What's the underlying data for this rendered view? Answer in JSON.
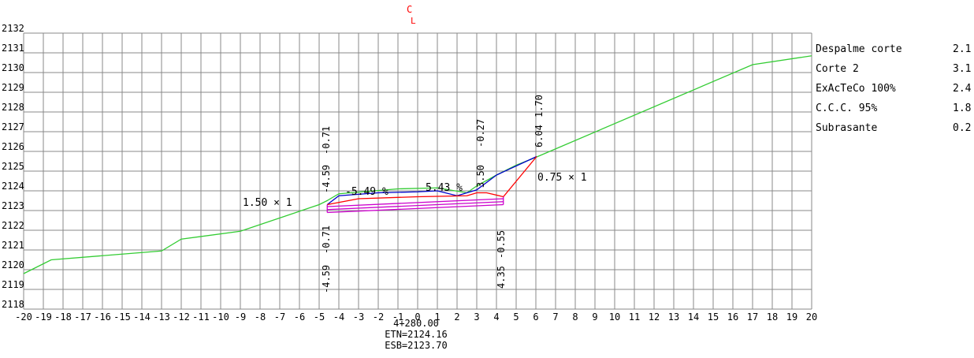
{
  "section": {
    "station": "4+280.00",
    "etn": "ETN=2124.16",
    "esb": "ESB=2123.70",
    "centerline_symbol": "C",
    "centerline_subscript": "L"
  },
  "axes": {
    "x_min": -20,
    "x_max": 20,
    "y_min": 2118,
    "y_max": 2132,
    "x_ticks": [
      "-20",
      "-19",
      "-18",
      "-17",
      "-16",
      "-15",
      "-14",
      "-13",
      "-12",
      "-11",
      "-10",
      "-9",
      "-8",
      "-7",
      "-6",
      "-5",
      "-4",
      "-3",
      "-2",
      "-1",
      "0",
      "1",
      "2",
      "3",
      "4",
      "5",
      "6",
      "7",
      "8",
      "9",
      "10",
      "11",
      "12",
      "13",
      "14",
      "15",
      "16",
      "17",
      "18",
      "19",
      "20"
    ],
    "y_ticks": [
      "2132",
      "2131",
      "2130",
      "2129",
      "2128",
      "2127",
      "2126",
      "2125",
      "2124",
      "2123",
      "2122",
      "2121",
      "2120",
      "2119",
      "2118"
    ],
    "grid": true
  },
  "legend": [
    {
      "label": "Despalme corte",
      "value": "2.1"
    },
    {
      "label": "Corte 2",
      "value": "3.1"
    },
    {
      "label": "ExAcTeCo 100%",
      "value": "2.4"
    },
    {
      "label": "C.C.C. 95%",
      "value": "1.8"
    },
    {
      "label": "Subrasante",
      "value": "0.2"
    }
  ],
  "annotations": {
    "left_slope": "1.50 × 1",
    "right_slope": "0.75 × 1",
    "left_grade": "-5.49 %",
    "right_grade": "5.43 %",
    "left_top_offset": "-4.59",
    "left_top_diff": "-0.71",
    "left_bottom_offset": "-4.59",
    "left_bottom_diff": "-0.71",
    "right_mid_offset": "3.50",
    "right_mid_diff": "-0.27",
    "right_top_offset": "6.04",
    "right_top_diff": "1.70",
    "right_bottom_offset": "4.35",
    "right_bottom_diff": "-0.55"
  },
  "colors": {
    "terrain": "#33cc33",
    "subgrade": "#0000cc",
    "cut": "#ff0000",
    "layers": "#cc00cc",
    "grid": "#888888",
    "centerline": "#ff0000"
  },
  "chart_data": {
    "type": "line",
    "xlabel": "",
    "ylabel": "",
    "xlim": [
      -20,
      20
    ],
    "ylim": [
      2118,
      2132
    ],
    "series": [
      {
        "key": "terrain",
        "points": [
          [
            -20,
            2119.8
          ],
          [
            -18.6,
            2120.5
          ],
          [
            -13,
            2120.95
          ],
          [
            -12,
            2121.55
          ],
          [
            -9,
            2121.95
          ],
          [
            -5,
            2123.3
          ],
          [
            -4.6,
            2123.5
          ],
          [
            -4,
            2123.85
          ],
          [
            -1,
            2124.1
          ],
          [
            1,
            2124.15
          ],
          [
            2.5,
            2123.9
          ],
          [
            3,
            2124.25
          ],
          [
            4,
            2124.8
          ],
          [
            5,
            2125.3
          ],
          [
            6,
            2125.7
          ],
          [
            17,
            2130.4
          ],
          [
            20,
            2130.85
          ]
        ]
      },
      {
        "key": "subgrade",
        "points": [
          [
            -4.59,
            2123.3
          ],
          [
            -4,
            2123.75
          ],
          [
            -2,
            2123.9
          ],
          [
            0,
            2123.95
          ],
          [
            1,
            2124.0
          ],
          [
            2,
            2123.75
          ],
          [
            3,
            2124.05
          ],
          [
            4,
            2124.8
          ],
          [
            6.04,
            2125.74
          ]
        ]
      },
      {
        "key": "cut",
        "points": [
          [
            -4.59,
            2123.3
          ],
          [
            -3,
            2123.6
          ],
          [
            0,
            2123.7
          ],
          [
            2.5,
            2123.75
          ],
          [
            3,
            2123.9
          ],
          [
            3.5,
            2123.9
          ],
          [
            4.35,
            2123.7
          ],
          [
            6.04,
            2125.74
          ]
        ]
      },
      {
        "key": "layers",
        "points": [
          [
            -4.59,
            2123.2
          ],
          [
            4.35,
            2123.6
          ]
        ]
      },
      {
        "key": "layers",
        "points": [
          [
            -4.59,
            2123.05
          ],
          [
            4.35,
            2123.45
          ]
        ]
      },
      {
        "key": "layers",
        "points": [
          [
            -4.59,
            2122.9
          ],
          [
            4.35,
            2123.3
          ]
        ]
      },
      {
        "key": "layers",
        "points": [
          [
            -4.59,
            2122.9
          ],
          [
            -4.59,
            2123.3
          ]
        ]
      },
      {
        "key": "layers",
        "points": [
          [
            4.35,
            2123.3
          ],
          [
            4.35,
            2123.7
          ]
        ]
      }
    ]
  }
}
